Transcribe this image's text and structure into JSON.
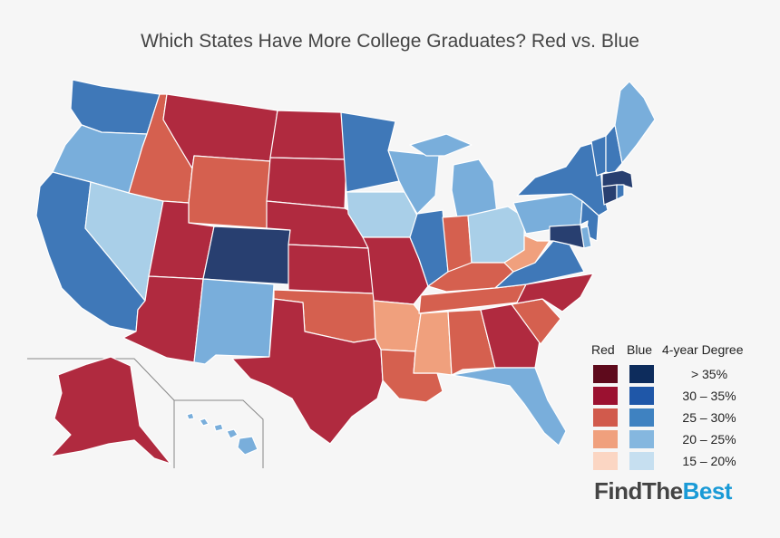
{
  "title": "Which States Have More College Graduates? Red vs. Blue",
  "legend": {
    "red_header": "Red",
    "blue_header": "Blue",
    "degree_header": "4-year Degree",
    "bins": [
      {
        "label": "> 35%",
        "red": "#5e0a1c",
        "blue": "#0d2c5c"
      },
      {
        "label": "30 – 35%",
        "red": "#9b1130",
        "blue": "#1f57a8"
      },
      {
        "label": "25 – 30%",
        "red": "#d15a4c",
        "blue": "#3f82c1"
      },
      {
        "label": "20 – 25%",
        "red": "#f0a07d",
        "blue": "#85b7df"
      },
      {
        "label": "15 – 20%",
        "red": "#fbd6c3",
        "blue": "#c6dff0"
      }
    ]
  },
  "map_colors": {
    "red_dark": "#b02a3f",
    "red_mid": "#d5604f",
    "red_light": "#f0a07d",
    "blue_dark": "#283f70",
    "blue_mid": "#3f78b8",
    "blue_light": "#79aedb",
    "blue_pale": "#a9cfe8"
  },
  "states": {
    "WA": "blue_mid",
    "OR": "blue_light",
    "CA": "blue_mid",
    "NV": "blue_pale",
    "ID": "red_mid",
    "MT": "red_dark",
    "WY": "red_mid",
    "UT": "red_dark",
    "AZ": "red_dark",
    "CO": "blue_dark",
    "NM": "blue_light",
    "ND": "red_dark",
    "SD": "red_dark",
    "NE": "red_dark",
    "KS": "red_dark",
    "OK": "red_mid",
    "TX": "red_dark",
    "MN": "blue_mid",
    "IA": "blue_pale",
    "MO": "red_dark",
    "AR": "red_light",
    "LA": "red_mid",
    "WI": "blue_light",
    "IL": "blue_mid",
    "MI": "blue_light",
    "IN": "red_mid",
    "OH": "blue_pale",
    "KY": "red_mid",
    "TN": "red_mid",
    "MS": "red_light",
    "AL": "red_mid",
    "GA": "red_dark",
    "FL": "blue_light",
    "SC": "red_mid",
    "NC": "red_dark",
    "VA": "blue_mid",
    "WV": "red_light",
    "PA": "blue_light",
    "NY": "blue_mid",
    "VT": "blue_mid",
    "NH": "blue_mid",
    "ME": "blue_light",
    "MA": "blue_dark",
    "CT": "blue_dark",
    "RI": "blue_mid",
    "NJ": "blue_mid",
    "DE": "blue_light",
    "MD": "blue_dark",
    "AK": "red_dark",
    "HI": "blue_light"
  },
  "brand": {
    "part1": "FindThe",
    "part2": "Best",
    "color1": "#444444",
    "color2": "#1a9ad6"
  }
}
